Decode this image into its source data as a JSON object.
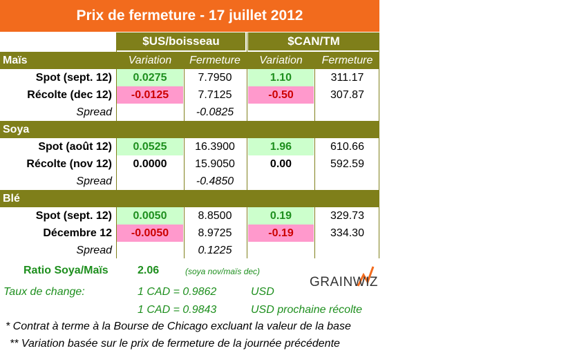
{
  "title": "Prix de fermeture - 17 juillet 2012",
  "headers": {
    "us": "$US/boisseau",
    "can": "$CAN/TM",
    "variation": "Variation",
    "fermeture": "Fermeture"
  },
  "sections": [
    {
      "name": "Maïs",
      "rows": [
        {
          "label": "Spot (sept. 12)",
          "us_var": "0.0275",
          "us_close": "7.7950",
          "can_var": "1.10",
          "can_close": "311.17",
          "sign": "pos"
        },
        {
          "label": "Récolte (dec 12)",
          "us_var": "-0.0125",
          "us_close": "7.7125",
          "can_var": "-0.50",
          "can_close": "307.87",
          "sign": "neg"
        }
      ],
      "spread_label": "Spread",
      "spread": "-0.0825"
    },
    {
      "name": "Soya",
      "rows": [
        {
          "label": "Spot (août 12)",
          "us_var": "0.0525",
          "us_close": "16.3900",
          "can_var": "1.96",
          "can_close": "610.66",
          "sign": "pos"
        },
        {
          "label": "Récolte (nov 12)",
          "us_var": "0.0000",
          "us_close": "15.9050",
          "can_var": "0.00",
          "can_close": "592.59",
          "sign": "zero"
        }
      ],
      "spread_label": "Spread",
      "spread": "-0.4850"
    },
    {
      "name": "Blé",
      "rows": [
        {
          "label": "Spot (sept. 12)",
          "us_var": "0.0050",
          "us_close": "8.8500",
          "can_var": "0.19",
          "can_close": "329.73",
          "sign": "pos"
        },
        {
          "label": "Décembre 12",
          "us_var": "-0.0050",
          "us_close": "8.9725",
          "can_var": "-0.19",
          "can_close": "334.30",
          "sign": "neg"
        }
      ],
      "spread_label": "Spread",
      "spread": "0.1225"
    }
  ],
  "ratio": {
    "label": "Ratio Soya/Maïs",
    "value": "2.06",
    "note": "(soya nov/maïs dec)"
  },
  "exchange": {
    "label": "Taux de change:",
    "line1": "1 CAD =  0.9862",
    "unit1": "USD",
    "line2": "1 CAD =  0.9843",
    "unit2": "USD prochaine récolte"
  },
  "notes": [
    "* Contrat à terme à la Bourse de Chicago excluant la valeur de la base",
    "** Variation basée sur le prix de fermeture de la journée précédente"
  ],
  "logo": {
    "text": "GRAINWIZ"
  },
  "colors": {
    "orange": "#f26b1d",
    "olive": "#7f7f1a",
    "pos_bg": "#ccffcc",
    "neg_bg": "#ff99cc"
  }
}
